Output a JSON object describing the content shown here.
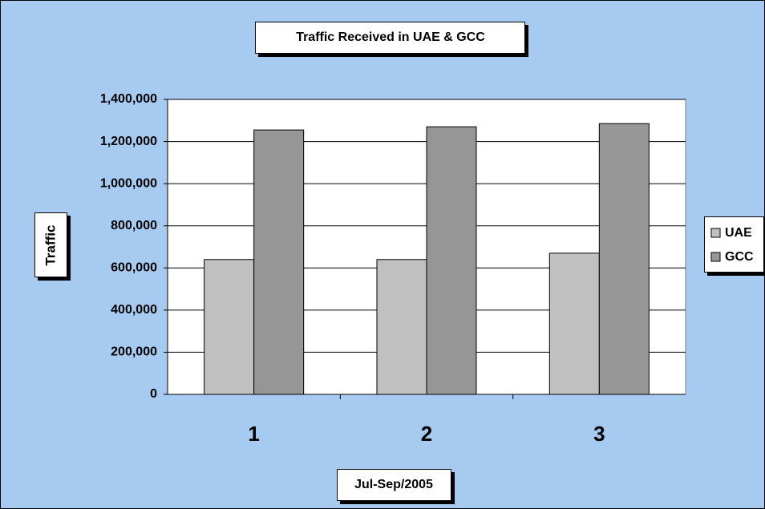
{
  "chart_data": {
    "type": "bar",
    "title": "Traffic Received in UAE & GCC",
    "x_label": "Jul-Sep/2005",
    "y_label": "Traffic",
    "categories": [
      "1",
      "2",
      "3"
    ],
    "series": [
      {
        "name": "UAE",
        "color": "#c0c0c0",
        "values": [
          640000,
          640000,
          670000
        ]
      },
      {
        "name": "GCC",
        "color": "#969696",
        "values": [
          1255000,
          1270000,
          1285000
        ]
      }
    ],
    "ylim": [
      0,
      1400000
    ],
    "yticks": [
      0,
      {
        "value": 200000,
        "label": "200,000"
      },
      {
        "value": 400000,
        "label": "400,000"
      },
      {
        "value": 600000,
        "label": "600,000"
      },
      {
        "value": 800000,
        "label": "800,000"
      },
      {
        "value": 1000000,
        "label": "1,000,000"
      },
      {
        "value": 1200000,
        "label": "1,200,000"
      },
      {
        "value": 1400000,
        "label": "1,400,000"
      }
    ],
    "grid": true,
    "legend": "right"
  }
}
